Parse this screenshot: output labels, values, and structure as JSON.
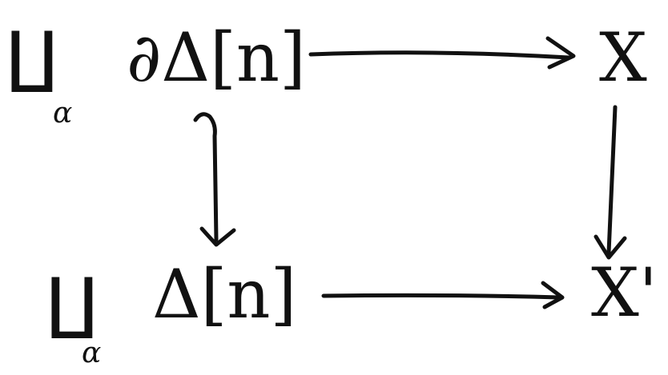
{
  "diagram": {
    "top_left": {
      "coproduct": "∐",
      "index": "α",
      "text": "∂Δ[n]"
    },
    "top_right": {
      "text": "X"
    },
    "bottom_left": {
      "coproduct": "∐",
      "index": "α",
      "text": "Δ[n]"
    },
    "bottom_right": {
      "text": "X'"
    }
  },
  "colors": {
    "ink": "#111111",
    "background": "#ffffff"
  }
}
